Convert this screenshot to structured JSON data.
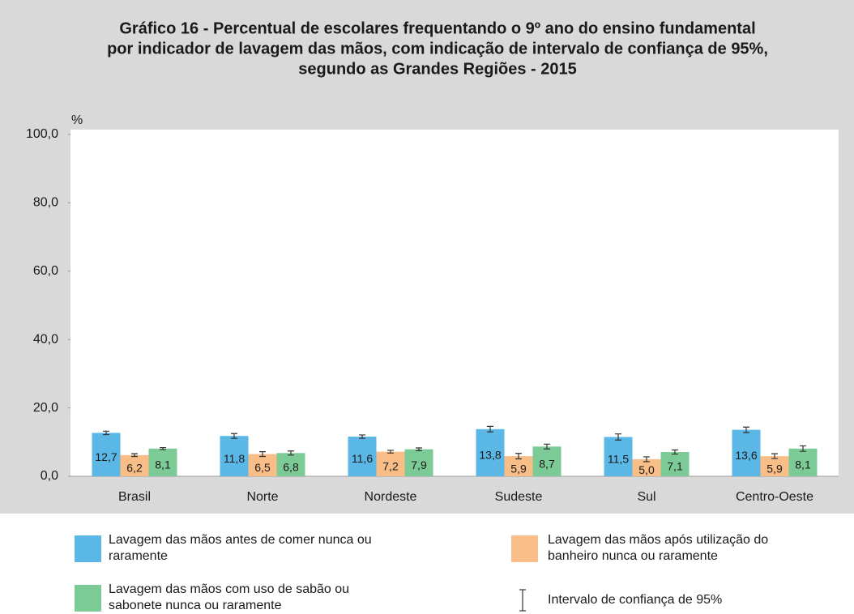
{
  "chart_data": {
    "type": "bar",
    "title": [
      "Gráfico 16 - Percentual de escolares frequentando o 9º ano do ensino fundamental",
      "por indicador de lavagem das mãos, com indicação de intervalo de confiança de 95%,",
      "segundo as Grandes Regiões - 2015"
    ],
    "ylabel": "%",
    "categories": [
      "Brasil",
      "Norte",
      "Nordeste",
      "Sudeste",
      "Sul",
      "Centro-Oeste"
    ],
    "series": [
      {
        "name": "Lavagem das mãos antes de comer nunca ou raramente",
        "color": "#5bb7e5",
        "values": [
          12.7,
          11.8,
          11.6,
          13.8,
          11.5,
          13.6
        ],
        "value_labels": [
          "12,7",
          "11,8",
          "11,6",
          "13,8",
          "11,5",
          "13,6"
        ],
        "errors": [
          0.5,
          0.7,
          0.5,
          0.8,
          0.9,
          0.8
        ]
      },
      {
        "name": "Lavagem das mãos após utilização do banheiro nunca ou raramente",
        "color": "#f9bd87",
        "values": [
          6.2,
          6.5,
          7.2,
          5.9,
          5.0,
          5.9
        ],
        "value_labels": [
          "6,2",
          "6,5",
          "7,2",
          "5,9",
          "5,0",
          "5,9"
        ],
        "errors": [
          0.4,
          0.7,
          0.4,
          0.8,
          0.7,
          0.7
        ]
      },
      {
        "name": "Lavagem das mãos com uso de sabão ou sabonete nunca ou raramente",
        "color": "#7ccb96",
        "values": [
          8.1,
          6.8,
          7.9,
          8.7,
          7.1,
          8.1
        ],
        "value_labels": [
          "8,1",
          "6,8",
          "7,9",
          "8,7",
          "7,1",
          "8,1"
        ],
        "errors": [
          0.3,
          0.6,
          0.4,
          0.7,
          0.6,
          0.8
        ]
      }
    ],
    "error_bar_label": "Intervalo de confiança de 95%",
    "ylim": [
      0,
      100
    ],
    "yticks": [
      {
        "value": 0,
        "label": "0,0"
      },
      {
        "value": 20,
        "label": "20,0"
      },
      {
        "value": 40,
        "label": "40,0"
      },
      {
        "value": 60,
        "label": "60,0"
      },
      {
        "value": 80,
        "label": "80,0"
      },
      {
        "value": 100,
        "label": "100,0"
      }
    ],
    "grid": false
  }
}
